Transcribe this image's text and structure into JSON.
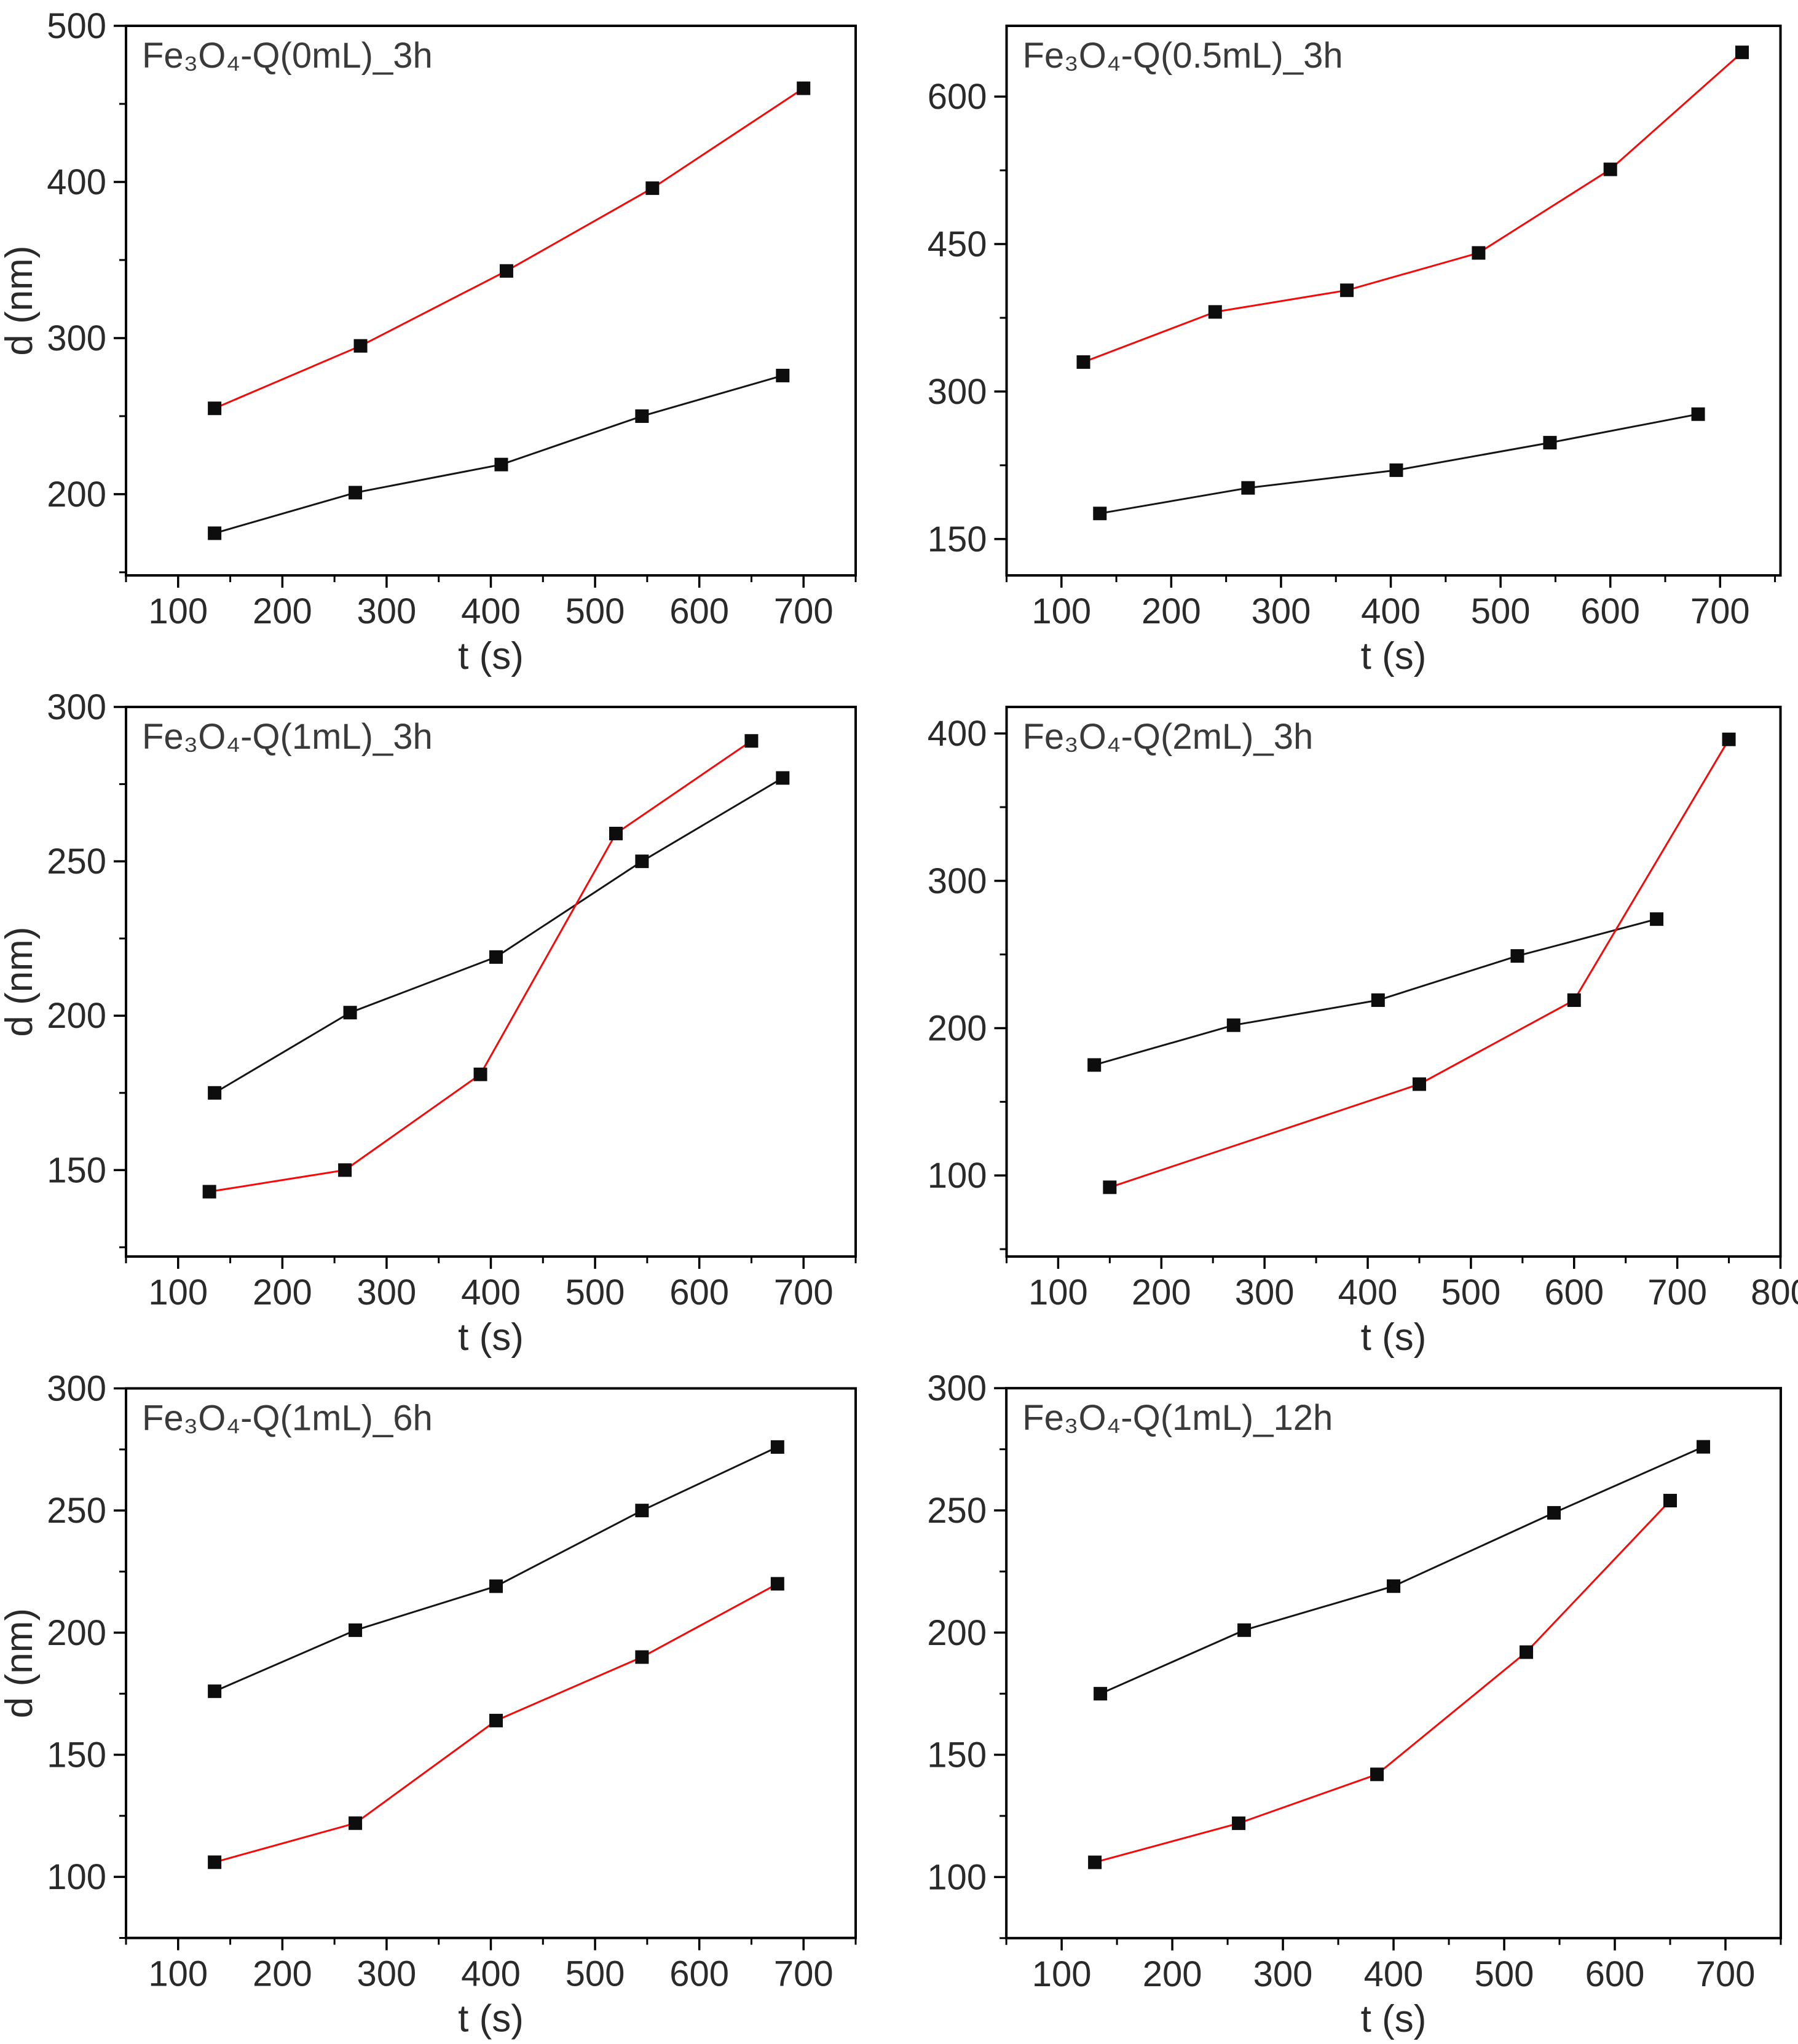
{
  "figure": {
    "background": "#ffffff",
    "axis_color": "#000000",
    "text_color": "#2a2a2a",
    "title_color": "#3a3a3a",
    "series_colors": {
      "black": "#151515",
      "red": "#f90808"
    },
    "marker_color": "#0d0d0d",
    "marker_shape": "square"
  },
  "chart_data": [
    {
      "id": "panel-0ml-3h",
      "type": "line",
      "title": "Fe₃O₄-Q(0mL)_3h",
      "xlabel": "t (s)",
      "ylabel": "d (nm)",
      "xlim": [
        50,
        750
      ],
      "ylim": [
        148,
        500
      ],
      "xticks": [
        100,
        200,
        300,
        400,
        500,
        600,
        700
      ],
      "yticks": [
        200,
        300,
        400,
        500
      ],
      "grid": false,
      "legend": "none",
      "series": [
        {
          "name": "black",
          "color": "#151515",
          "marker": "square",
          "points": [
            [
              135,
              175
            ],
            [
              270,
              201
            ],
            [
              410,
              219
            ],
            [
              545,
              250
            ],
            [
              680,
              276
            ]
          ]
        },
        {
          "name": "red",
          "color": "#f90808",
          "marker": "square",
          "points": [
            [
              135,
              255
            ],
            [
              275,
              295
            ],
            [
              415,
              343
            ],
            [
              555,
              396
            ],
            [
              700,
              460
            ]
          ]
        }
      ]
    },
    {
      "id": "panel-0p5ml-3h",
      "type": "line",
      "title": "Fe₃O₄-Q(0.5mL)_3h",
      "xlabel": "t (s)",
      "ylabel": "",
      "xlim": [
        50,
        755
      ],
      "ylim": [
        113,
        672
      ],
      "xticks": [
        100,
        200,
        300,
        400,
        500,
        600,
        700
      ],
      "yticks": [
        150,
        300,
        450,
        600
      ],
      "grid": false,
      "legend": "none",
      "series": [
        {
          "name": "black",
          "color": "#151515",
          "marker": "square",
          "points": [
            [
              135,
              176
            ],
            [
              270,
              202
            ],
            [
              405,
              220
            ],
            [
              545,
              248
            ],
            [
              680,
              277
            ]
          ]
        },
        {
          "name": "red",
          "color": "#f90808",
          "marker": "square",
          "points": [
            [
              120,
              330
            ],
            [
              240,
              381
            ],
            [
              360,
              403
            ],
            [
              480,
              441
            ],
            [
              600,
              526
            ],
            [
              720,
              645
            ]
          ]
        }
      ]
    },
    {
      "id": "panel-1ml-3h",
      "type": "line",
      "title": "Fe₃O₄-Q(1mL)_3h",
      "xlabel": "t (s)",
      "ylabel": "d (nm)",
      "xlim": [
        50,
        750
      ],
      "ylim": [
        122,
        300
      ],
      "xticks": [
        100,
        200,
        300,
        400,
        500,
        600,
        700
      ],
      "yticks": [
        150,
        200,
        250,
        300
      ],
      "grid": false,
      "legend": "none",
      "series": [
        {
          "name": "black",
          "color": "#151515",
          "marker": "square",
          "points": [
            [
              135,
              175
            ],
            [
              265,
              201
            ],
            [
              405,
              219
            ],
            [
              545,
              250
            ],
            [
              680,
              277
            ]
          ]
        },
        {
          "name": "red",
          "color": "#f90808",
          "marker": "square",
          "points": [
            [
              130,
              143
            ],
            [
              260,
              150
            ],
            [
              390,
              181
            ],
            [
              520,
              259
            ],
            [
              650,
              289
            ]
          ]
        }
      ]
    },
    {
      "id": "panel-2ml-3h",
      "type": "line",
      "title": "Fe₃O₄-Q(2mL)_3h",
      "xlabel": "t (s)",
      "ylabel": "",
      "xlim": [
        50,
        800
      ],
      "ylim": [
        45,
        418
      ],
      "xticks": [
        100,
        200,
        300,
        400,
        500,
        600,
        700,
        800
      ],
      "yticks": [
        100,
        200,
        300,
        400
      ],
      "grid": false,
      "legend": "none",
      "series": [
        {
          "name": "black",
          "color": "#151515",
          "marker": "square",
          "points": [
            [
              135,
              175
            ],
            [
              270,
              202
            ],
            [
              410,
              219
            ],
            [
              545,
              249
            ],
            [
              680,
              274
            ]
          ]
        },
        {
          "name": "red",
          "color": "#f90808",
          "marker": "square",
          "points": [
            [
              150,
              92
            ],
            [
              450,
              162
            ],
            [
              600,
              219
            ],
            [
              750,
              396
            ]
          ]
        }
      ]
    },
    {
      "id": "panel-1ml-6h",
      "type": "line",
      "title": "Fe₃O₄-Q(1mL)_6h",
      "xlabel": "t (s)",
      "ylabel": "d (nm)",
      "xlim": [
        50,
        750
      ],
      "ylim": [
        75,
        300
      ],
      "xticks": [
        100,
        200,
        300,
        400,
        500,
        600,
        700
      ],
      "yticks": [
        100,
        150,
        200,
        250,
        300
      ],
      "grid": false,
      "legend": "none",
      "series": [
        {
          "name": "black",
          "color": "#151515",
          "marker": "square",
          "points": [
            [
              135,
              176
            ],
            [
              270,
              201
            ],
            [
              405,
              219
            ],
            [
              545,
              250
            ],
            [
              675,
              276
            ]
          ]
        },
        {
          "name": "red",
          "color": "#f90808",
          "marker": "square",
          "points": [
            [
              135,
              106
            ],
            [
              270,
              122
            ],
            [
              405,
              164
            ],
            [
              545,
              190
            ],
            [
              675,
              220
            ]
          ]
        }
      ]
    },
    {
      "id": "panel-1ml-12h",
      "type": "line",
      "title": "Fe₃O₄-Q(1mL)_12h",
      "xlabel": "t (s)",
      "ylabel": "",
      "xlim": [
        50,
        750
      ],
      "ylim": [
        75,
        300
      ],
      "xticks": [
        100,
        200,
        300,
        400,
        500,
        600,
        700
      ],
      "yticks": [
        100,
        150,
        200,
        250,
        300
      ],
      "grid": false,
      "legend": "none",
      "series": [
        {
          "name": "black",
          "color": "#151515",
          "marker": "square",
          "points": [
            [
              135,
              175
            ],
            [
              265,
              201
            ],
            [
              400,
              219
            ],
            [
              545,
              249
            ],
            [
              680,
              276
            ]
          ]
        },
        {
          "name": "red",
          "color": "#f90808",
          "marker": "square",
          "points": [
            [
              130,
              106
            ],
            [
              260,
              122
            ],
            [
              385,
              142
            ],
            [
              520,
              192
            ],
            [
              650,
              254
            ]
          ]
        }
      ]
    }
  ]
}
